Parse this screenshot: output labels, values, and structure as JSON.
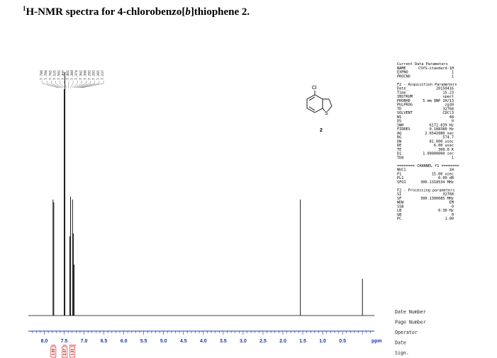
{
  "title": {
    "sup": "1",
    "pre": "H-NMR spectra for 4-chlorobenzo[",
    "ital": "b",
    "post": "]thiophene 2."
  },
  "colors": {
    "spectrum": "#000000",
    "axis": "#1a3aa8",
    "integral": "#c00000",
    "tick_label": "#1a3aa8"
  },
  "chart_data": {
    "type": "line",
    "xlabel": "ppm",
    "xlim": [
      8.4,
      -0.3
    ],
    "x_ticks": [
      8.0,
      7.5,
      7.0,
      6.5,
      6.0,
      5.5,
      5.0,
      4.5,
      4.0,
      3.5,
      3.0,
      2.5,
      2.0,
      1.5,
      1.0,
      0.5
    ],
    "tick_labels": [
      "8.0",
      "7.5",
      "7.0",
      "6.5",
      "6.0",
      "5.5",
      "5.0",
      "4.5",
      "4.0",
      "3.5",
      "3.0",
      "2.5",
      "2.0",
      "1.5",
      "1.0",
      "0.5"
    ],
    "peaks": [
      {
        "ppm": 7.78,
        "height": 0.41
      },
      {
        "ppm": 7.76,
        "height": 0.4
      },
      {
        "ppm": 7.5,
        "height": 0.8
      },
      {
        "ppm": 7.48,
        "height": 0.86
      },
      {
        "ppm": 7.36,
        "height": 0.28
      },
      {
        "ppm": 7.34,
        "height": 0.42
      },
      {
        "ppm": 7.29,
        "height": 0.41
      },
      {
        "ppm": 7.27,
        "height": 0.29
      },
      {
        "ppm": 7.25,
        "height": 0.18
      },
      {
        "ppm": 1.56,
        "height": 0.41
      },
      {
        "ppm": 0.0,
        "height": 0.13
      }
    ],
    "integral_regions": [
      {
        "from": 7.82,
        "to": 7.72,
        "label": "1.00"
      },
      {
        "from": 7.53,
        "to": 7.44,
        "label": "2.07"
      },
      {
        "from": 7.38,
        "to": 7.2,
        "label": "1.01"
      }
    ],
    "peak_labels": [
      "7.788",
      "7.784",
      "7.765",
      "7.525",
      "7.502",
      "7.497",
      "7.481",
      "7.380",
      "7.374",
      "7.362",
      "7.308",
      "7.293",
      "7.283",
      "7.265",
      "7.237"
    ]
  },
  "structure": {
    "substituent": "Cl",
    "heteroatom": "S",
    "compound_number": "2"
  },
  "parameters": [
    {
      "name": "Current Data Parameters",
      "value": ""
    },
    {
      "name": "NAME",
      "value": "CSYS-standard-1H"
    },
    {
      "name": "EXPNO",
      "value": "1"
    },
    {
      "name": "PROCNO",
      "value": "1"
    },
    {
      "name": "",
      "value": ""
    },
    {
      "name": "F2 - Acquisition Parameters",
      "value": ""
    },
    {
      "name": "Date_",
      "value": "20150416"
    },
    {
      "name": "Time",
      "value": "15.23"
    },
    {
      "name": "INSTRUM",
      "value": "spect"
    },
    {
      "name": "PROBHD",
      "value": "5 mm QNP 1H/13"
    },
    {
      "name": "PULPROG",
      "value": "zg30"
    },
    {
      "name": "TD",
      "value": "32768"
    },
    {
      "name": "SOLVENT",
      "value": "CDCl3"
    },
    {
      "name": "NS",
      "value": "48"
    },
    {
      "name": "DS",
      "value": "0"
    },
    {
      "name": "SWH",
      "value": "6172.839 Hz"
    },
    {
      "name": "FIDRES",
      "value": "0.188380 Hz"
    },
    {
      "name": "AQ",
      "value": "2.6542080 sec"
    },
    {
      "name": "RG",
      "value": "574.7"
    },
    {
      "name": "DW",
      "value": "81.000 usec"
    },
    {
      "name": "DE",
      "value": "6.00 usec"
    },
    {
      "name": "TE",
      "value": "300.0 K"
    },
    {
      "name": "D1",
      "value": "1.00000000 sec"
    },
    {
      "name": "TD0",
      "value": "1"
    },
    {
      "name": "",
      "value": ""
    },
    {
      "name": "======== CHANNEL f1 ========",
      "value": ""
    },
    {
      "name": "NUC1",
      "value": "1H"
    },
    {
      "name": "P1",
      "value": "15.00 usec"
    },
    {
      "name": "PL1",
      "value": "0.00 dB"
    },
    {
      "name": "SFO1",
      "value": "300.1318534 MHz"
    },
    {
      "name": "",
      "value": ""
    },
    {
      "name": "F2 - Processing parameters",
      "value": ""
    },
    {
      "name": "SI",
      "value": "32768"
    },
    {
      "name": "SF",
      "value": "300.1300085 MHz"
    },
    {
      "name": "WDW",
      "value": "EM"
    },
    {
      "name": "SSB",
      "value": "0"
    },
    {
      "name": "LB",
      "value": "0.30 Hz"
    },
    {
      "name": "GB",
      "value": "0"
    },
    {
      "name": "PC",
      "value": "1.00"
    }
  ],
  "footer": [
    "Date Number",
    "Page Number",
    "Operator",
    "Date",
    "Sign."
  ]
}
